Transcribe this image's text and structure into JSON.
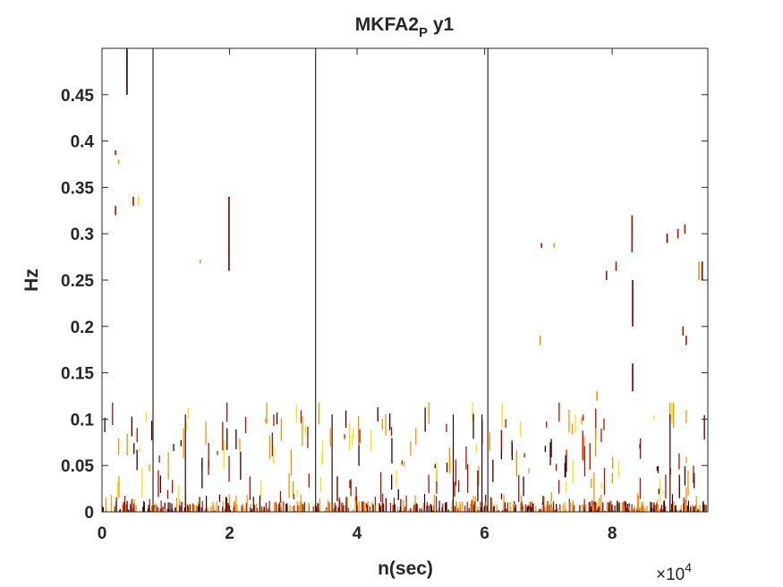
{
  "chart_data": {
    "type": "heatmap",
    "title_main": "MKFA2",
    "title_sub": "P",
    "title_tail": " y1",
    "xlabel": "n(sec)",
    "ylabel": "Hz",
    "x_exponent_base": "×10",
    "x_exponent_power": "4",
    "xlim": [
      0,
      95000
    ],
    "ylim": [
      0,
      0.5
    ],
    "x_ticks": [
      0,
      20000,
      40000,
      60000,
      80000
    ],
    "x_tick_labels": [
      "0",
      "2",
      "4",
      "6",
      "8"
    ],
    "y_ticks": [
      0,
      0.05,
      0.1,
      0.15,
      0.2,
      0.25,
      0.3,
      0.35,
      0.4,
      0.45
    ],
    "y_tick_labels": [
      "0",
      "0.05",
      "0.1",
      "0.15",
      "0.2",
      "0.25",
      "0.3",
      "0.35",
      "0.4",
      "0.45"
    ],
    "grid": false,
    "colormap": "hot",
    "colors": {
      "dark": "#3a0000",
      "mid": "#b01000",
      "bright": "#ff9000",
      "light": "#ffe000"
    },
    "vertical_lines_x": [
      8000,
      33500,
      60500
    ],
    "features": [
      {
        "x": 3800,
        "y0": 0.45,
        "y1": 0.5,
        "color": "#2a0000"
      },
      {
        "x": 2000,
        "y0": 0.385,
        "y1": 0.39,
        "color": "#b01000"
      },
      {
        "x": 2500,
        "y0": 0.375,
        "y1": 0.38,
        "color": "#ff9000"
      },
      {
        "x": 2000,
        "y0": 0.32,
        "y1": 0.33,
        "color": "#b01000"
      },
      {
        "x": 4800,
        "y0": 0.33,
        "y1": 0.34,
        "color": "#b01000"
      },
      {
        "x": 5600,
        "y0": 0.33,
        "y1": 0.34,
        "color": "#ffe000"
      },
      {
        "x": 19800,
        "y0": 0.26,
        "y1": 0.34,
        "color": "#6a0000"
      },
      {
        "x": 15300,
        "y0": 0.268,
        "y1": 0.272,
        "color": "#ff9000"
      },
      {
        "x": 83000,
        "y0": 0.28,
        "y1": 0.32,
        "color": "#b01000"
      },
      {
        "x": 83100,
        "y0": 0.2,
        "y1": 0.25,
        "color": "#6a0000"
      },
      {
        "x": 83100,
        "y0": 0.13,
        "y1": 0.16,
        "color": "#6a0000"
      },
      {
        "x": 88500,
        "y0": 0.29,
        "y1": 0.3,
        "color": "#6a0000"
      },
      {
        "x": 90200,
        "y0": 0.295,
        "y1": 0.305,
        "color": "#b01000"
      },
      {
        "x": 91300,
        "y0": 0.3,
        "y1": 0.31,
        "color": "#b01000"
      },
      {
        "x": 93500,
        "y0": 0.25,
        "y1": 0.27,
        "color": "#ff9000"
      },
      {
        "x": 94000,
        "y0": 0.25,
        "y1": 0.27,
        "color": "#6a0000"
      },
      {
        "x": 91000,
        "y0": 0.19,
        "y1": 0.2,
        "color": "#b01000"
      },
      {
        "x": 91500,
        "y0": 0.18,
        "y1": 0.19,
        "color": "#b01000"
      },
      {
        "x": 68800,
        "y0": 0.285,
        "y1": 0.29,
        "color": "#b01000"
      },
      {
        "x": 70800,
        "y0": 0.285,
        "y1": 0.29,
        "color": "#ff9000"
      },
      {
        "x": 68600,
        "y0": 0.18,
        "y1": 0.19,
        "color": "#ff9000"
      },
      {
        "x": 79000,
        "y0": 0.25,
        "y1": 0.26,
        "color": "#b01000"
      },
      {
        "x": 80500,
        "y0": 0.26,
        "y1": 0.27,
        "color": "#b01000"
      },
      {
        "x": 77500,
        "y0": 0.12,
        "y1": 0.13,
        "color": "#ff9000"
      }
    ]
  }
}
